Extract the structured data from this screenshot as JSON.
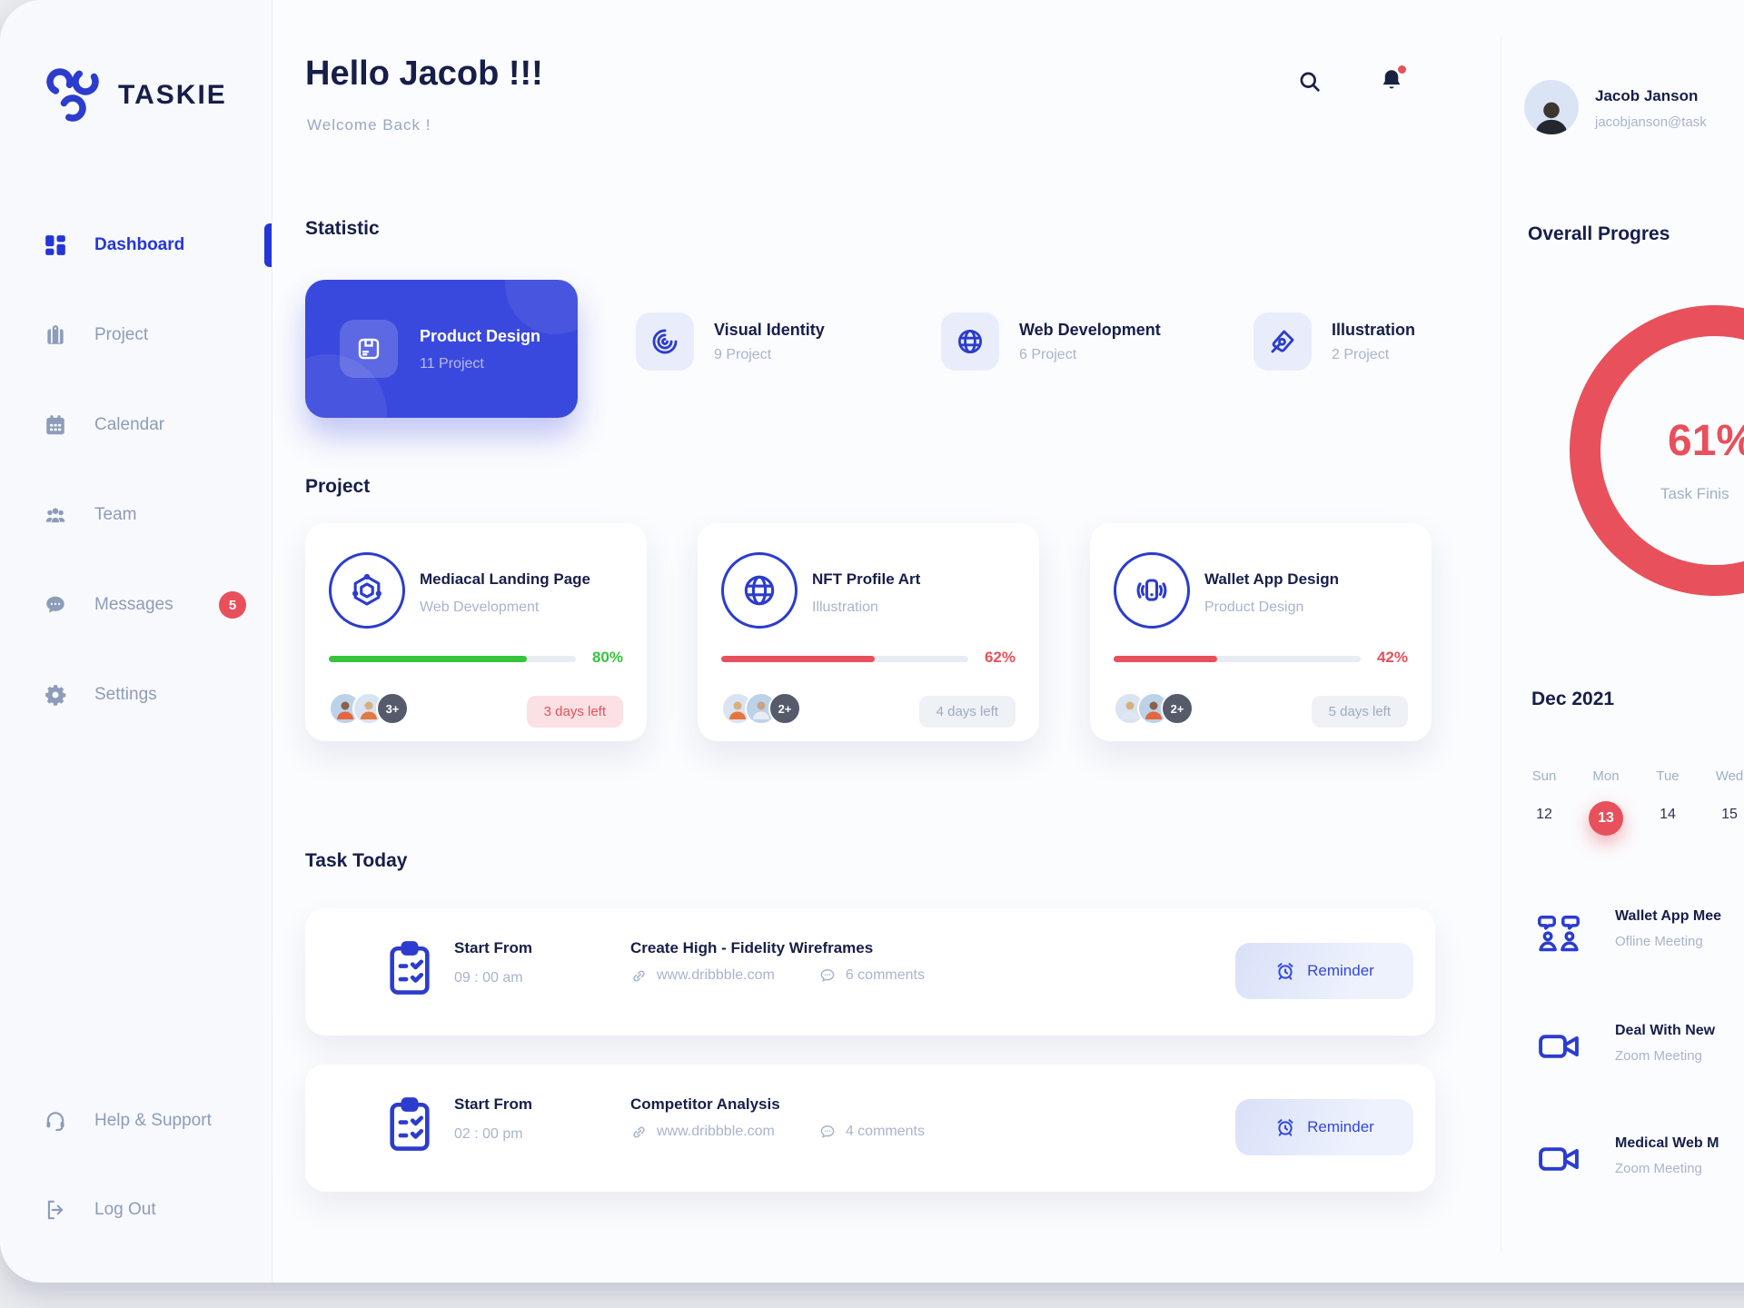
{
  "app": {
    "brand": "TASKIE"
  },
  "colors": {
    "primary": "#3a49dd",
    "accent_blue": "#2536d6",
    "red": "#e8505b",
    "green": "#35c53c",
    "navy": "#171e49",
    "muted": "#a9b4cc"
  },
  "sidebar": {
    "items": [
      {
        "label": "Dashboard"
      },
      {
        "label": "Project"
      },
      {
        "label": "Calendar"
      },
      {
        "label": "Team"
      },
      {
        "label": "Messages",
        "badge": "5"
      },
      {
        "label": "Settings"
      }
    ],
    "footer_items": [
      {
        "label": "Help & Support"
      },
      {
        "label": "Log Out"
      }
    ]
  },
  "header": {
    "greeting": "Hello Jacob !!!",
    "subtitle": "Welcome Back !"
  },
  "statistic": {
    "title": "Statistic",
    "cards": [
      {
        "name": "Product Design",
        "count": "11 Project",
        "icon": "package-icon"
      },
      {
        "name": "Visual Identity",
        "count": "9 Project",
        "icon": "spiral-icon"
      },
      {
        "name": "Web Development",
        "count": "6 Project",
        "icon": "globe-icon"
      },
      {
        "name": "Illustration",
        "count": "2 Project",
        "icon": "pen-nib-icon"
      }
    ]
  },
  "projects": {
    "title": "Project",
    "cards": [
      {
        "title": "Mediacal Landing Page",
        "category": "Web Development",
        "progress": "80%",
        "extra_members": "3+",
        "days_left": "3 days left"
      },
      {
        "title": "NFT Profile Art",
        "category": "Illustration",
        "progress": "62%",
        "extra_members": "2+",
        "days_left": "4 days left"
      },
      {
        "title": "Wallet App Design",
        "category": "Product Design",
        "progress": "42%",
        "extra_members": "2+",
        "days_left": "5 days left"
      }
    ]
  },
  "tasks": {
    "title": "Task Today",
    "items": [
      {
        "start_label": "Start From",
        "time": "09 : 00 am",
        "title": "Create High - Fidelity Wireframes",
        "link": "www.dribbble.com",
        "comments": "6 comments",
        "action": "Reminder"
      },
      {
        "start_label": "Start From",
        "time": "02 : 00 pm",
        "title": "Competitor Analysis",
        "link": "www.dribbble.com",
        "comments": "4 comments",
        "action": "Reminder"
      }
    ]
  },
  "profile": {
    "name": "Jacob Janson",
    "email": "jacobjanson@task"
  },
  "overall": {
    "title": "Overall Progres",
    "percent": "61%",
    "caption": "Task Finis"
  },
  "calendar": {
    "month": "Dec 2021",
    "days": [
      "Sun",
      "Mon",
      "Tue",
      "Wed"
    ],
    "dates": [
      "12",
      "13",
      "14",
      "15"
    ],
    "active_date": "13"
  },
  "meetings": [
    {
      "title": "Wallet App Mee",
      "subtitle": "Ofline Meeting",
      "icon": "people-chat-icon"
    },
    {
      "title": "Deal With New",
      "subtitle": "Zoom Meeting",
      "icon": "video-camera-icon"
    },
    {
      "title": "Medical Web M",
      "subtitle": "Zoom Meeting",
      "icon": "video-camera-icon"
    }
  ]
}
